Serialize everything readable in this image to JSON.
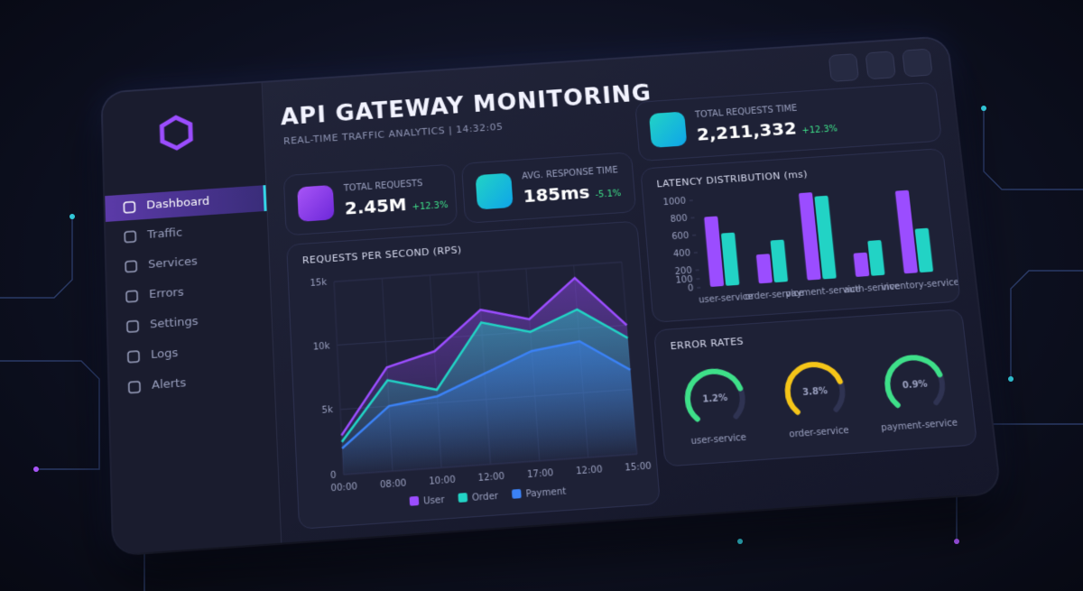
{
  "header": {
    "title": "API GATEWAY MONITORING",
    "subtitle": "REAL-TIME TRAFFIC ANALYTICS | 14:32:05"
  },
  "sidebar": {
    "items": [
      "Dashboard",
      "Traffic",
      "Services",
      "Errors",
      "Settings",
      "Logs",
      "Alerts"
    ]
  },
  "stats": [
    {
      "label": "TOTAL REQUESTS",
      "value": "2.45M",
      "change": "+12.3%"
    },
    {
      "label": "AVG. RESPONSE TIME",
      "value": "185ms",
      "change": "-5.1%"
    },
    {
      "label": "TOTAL REQUESTS TIME",
      "value": "2,211,332",
      "change": "+12.3%"
    }
  ],
  "rps_chart": {
    "type": "line",
    "title": "REQUESTS PER SECOND (RPS)",
    "categories": [
      "00:00",
      "08:00",
      "10:00",
      "12:00",
      "17:00",
      "12:00",
      "15:00"
    ],
    "series": [
      {
        "name": "User",
        "color": "#9b4dff",
        "values": [
          3000,
          8000,
          9000,
          12000,
          11000,
          14000,
          10000
        ]
      },
      {
        "name": "Order",
        "color": "#22d3c5",
        "values": [
          2500,
          7000,
          6000,
          11000,
          10000,
          11500,
          9000
        ]
      },
      {
        "name": "Payment",
        "color": "#3b82f6",
        "values": [
          2000,
          5000,
          5500,
          7000,
          8500,
          9000,
          6500
        ]
      }
    ],
    "ylim": [
      0,
      15000
    ],
    "yticks": [
      0,
      {
        "value": 5000,
        "label": "5k"
      },
      {
        "value": 10000,
        "label": "10k"
      },
      {
        "value": 15000,
        "label": "15k"
      }
    ],
    "grid": true
  },
  "latency_chart": {
    "type": "bar",
    "title": "LATENCY DISTRIBUTION (ms)",
    "categories": [
      "user-service",
      "order-service",
      "payment-service",
      "auth-service",
      "inventory-service"
    ],
    "series": [
      {
        "color": "#9b4dff",
        "values": [
          800,
          330,
          1000,
          270,
          950
        ]
      },
      {
        "color": "#22d3c5",
        "values": [
          600,
          480,
          950,
          400,
          500
        ]
      }
    ],
    "ylim": [
      0,
      1000
    ],
    "yticks": [
      0,
      100,
      200,
      400,
      600,
      800,
      1000
    ]
  },
  "error_rates": {
    "title": "ERROR RATES",
    "items": [
      {
        "value": "1.2%",
        "name": "user-service",
        "color": "#3ee089"
      },
      {
        "value": "3.8%",
        "name": "order-service",
        "color": "#f5c518"
      },
      {
        "value": "0.9%",
        "name": "payment-service",
        "color": "#3ee089"
      }
    ]
  }
}
